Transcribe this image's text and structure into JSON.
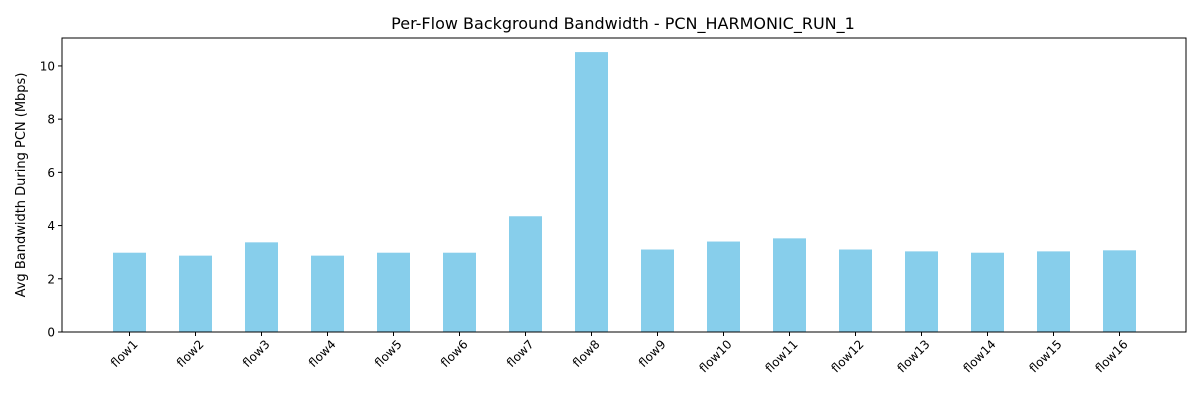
{
  "chart_data": {
    "type": "bar",
    "title": "Per-Flow Background Bandwidth - PCN_HARMONIC_RUN_1",
    "xlabel": "",
    "ylabel": "Avg Bandwidth During PCN (Mbps)",
    "categories": [
      "flow1",
      "flow2",
      "flow3",
      "flow4",
      "flow5",
      "flow6",
      "flow7",
      "flow8",
      "flow9",
      "flow10",
      "flow11",
      "flow12",
      "flow13",
      "flow14",
      "flow15",
      "flow16"
    ],
    "values": [
      2.98,
      2.87,
      3.37,
      2.87,
      2.98,
      2.98,
      4.35,
      10.52,
      3.1,
      3.4,
      3.52,
      3.1,
      3.03,
      2.98,
      3.03,
      3.07
    ],
    "ylim": [
      0,
      11.05
    ],
    "yticks": [
      0,
      2,
      4,
      6,
      8,
      10
    ],
    "bar_color": "#87ceeb",
    "grid": false,
    "legend": "none"
  }
}
